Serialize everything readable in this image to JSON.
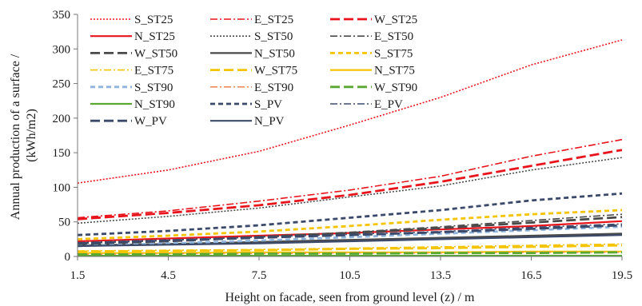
{
  "chart_data": {
    "type": "line",
    "title": "",
    "xlabel": "Height on facade, seen from ground level (z) / m",
    "ylabel": "Annual production of  a surface / (kWh/m2)",
    "x": [
      1.5,
      4.5,
      7.5,
      10.5,
      13.5,
      16.5,
      19.5
    ],
    "xlim": [
      1.5,
      19.5
    ],
    "ylim": [
      0,
      350
    ],
    "x_ticks": [
      "1.5",
      "4.5",
      "7.5",
      "10.5",
      "13.5",
      "16.5",
      "19.5"
    ],
    "y_ticks": [
      "0",
      "50",
      "100",
      "150",
      "200",
      "250",
      "300",
      "350"
    ],
    "grid": false,
    "legend_position": "top-left",
    "series": [
      {
        "name": "S_ST25",
        "color": "#e8141c",
        "dash": "dot-fine",
        "values": [
          106,
          125,
          152,
          190,
          230,
          277,
          313
        ]
      },
      {
        "name": "E_ST25",
        "color": "#e8141c",
        "dash": "dashdot",
        "values": [
          56,
          66,
          80,
          96,
          116,
          145,
          169
        ]
      },
      {
        "name": "W_ST25",
        "color": "#e8141c",
        "dash": "longdash",
        "values": [
          54,
          63,
          74,
          89,
          108,
          131,
          154
        ]
      },
      {
        "name": "N_ST25",
        "color": "#e8141c",
        "dash": "solid",
        "values": [
          22,
          26,
          30,
          34,
          39,
          44,
          51
        ]
      },
      {
        "name": "S_ST50",
        "color": "#4a4a4a",
        "dash": "dot-fine",
        "values": [
          48,
          58,
          70,
          86,
          102,
          125,
          143
        ]
      },
      {
        "name": "E_ST50",
        "color": "#4a4a4a",
        "dash": "dashdot",
        "values": [
          19,
          23,
          29,
          35,
          43,
          52,
          61
        ]
      },
      {
        "name": "W_ST50",
        "color": "#4a4a4a",
        "dash": "longdash",
        "values": [
          18,
          22,
          28,
          34,
          41,
          49,
          57
        ]
      },
      {
        "name": "N_ST50",
        "color": "#4a4a4a",
        "dash": "solid",
        "values": [
          16,
          18,
          21,
          24,
          27,
          30,
          33
        ]
      },
      {
        "name": "S_ST75",
        "color": "#f5c400",
        "dash": "dash",
        "values": [
          25,
          30,
          36,
          44,
          53,
          61,
          67
        ]
      },
      {
        "name": "E_ST75",
        "color": "#f5c400",
        "dash": "dashdot",
        "values": [
          8,
          9,
          10,
          12,
          14,
          16,
          18
        ]
      },
      {
        "name": "W_ST75",
        "color": "#f5c400",
        "dash": "longdash",
        "values": [
          7,
          8,
          9,
          11,
          12,
          14,
          16
        ]
      },
      {
        "name": "N_ST75",
        "color": "#f5c400",
        "dash": "solid",
        "values": [
          5,
          5,
          6,
          6,
          6,
          7,
          7
        ]
      },
      {
        "name": "S_ST90",
        "color": "#8fb4dd",
        "dash": "dash",
        "values": [
          15,
          19,
          23,
          28,
          33,
          38,
          43
        ]
      },
      {
        "name": "E_ST90",
        "color": "#f08a5d",
        "dash": "dashdot",
        "values": [
          3,
          4,
          4,
          5,
          5,
          6,
          6
        ]
      },
      {
        "name": "W_ST90",
        "color": "#5aa832",
        "dash": "longdash",
        "values": [
          3,
          3,
          4,
          4,
          5,
          5,
          6
        ]
      },
      {
        "name": "N_ST90",
        "color": "#5aa832",
        "dash": "solid",
        "values": [
          1,
          1,
          1,
          1,
          1,
          1,
          1
        ]
      },
      {
        "name": "S_PV",
        "color": "#3b4a6b",
        "dash": "dash",
        "values": [
          31,
          37,
          45,
          56,
          67,
          81,
          91
        ]
      },
      {
        "name": "E_PV",
        "color": "#3b4a6b",
        "dash": "dashdot",
        "values": [
          20,
          24,
          28,
          32,
          36,
          42,
          47
        ]
      },
      {
        "name": "W_PV",
        "color": "#3b4a6b",
        "dash": "longdash",
        "values": [
          19,
          23,
          27,
          31,
          35,
          40,
          45
        ]
      },
      {
        "name": "N_PV",
        "color": "#3b4a6b",
        "dash": "solid",
        "values": [
          15,
          17,
          19,
          22,
          25,
          28,
          31
        ]
      }
    ]
  }
}
